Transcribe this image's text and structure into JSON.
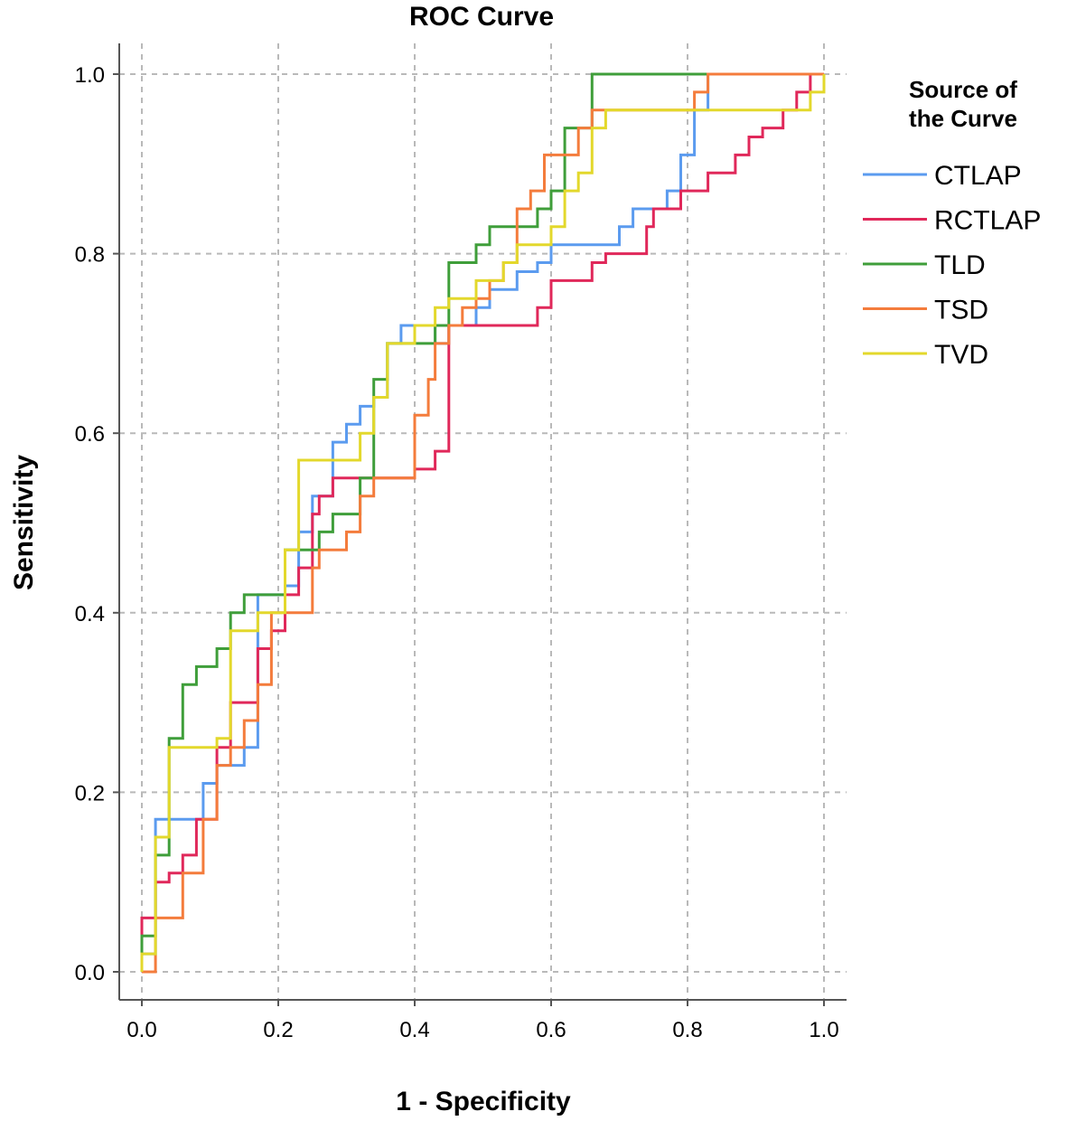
{
  "chart_data": {
    "type": "line",
    "title": "ROC Curve",
    "xlabel": "1 - Specificity",
    "ylabel": "Sensitivity",
    "xlim": [
      0,
      1
    ],
    "ylim": [
      0,
      1
    ],
    "xticks": [
      0.0,
      0.2,
      0.4,
      0.6,
      0.8,
      1.0
    ],
    "yticks": [
      0.0,
      0.2,
      0.4,
      0.6,
      0.8,
      1.0
    ],
    "tick_format": [
      "0.0",
      "0.2",
      "0.4",
      "0.6",
      "0.8",
      "1.0"
    ],
    "grid": true,
    "legend": {
      "title": "Source of the Curve",
      "title_lines": [
        "Source of",
        "the Curve"
      ],
      "position": "right"
    },
    "series": [
      {
        "name": "CTLAP",
        "color": "#5b9bef",
        "points": [
          [
            0,
            0
          ],
          [
            0,
            0.02
          ],
          [
            0.02,
            0.02
          ],
          [
            0.02,
            0.17
          ],
          [
            0.09,
            0.17
          ],
          [
            0.09,
            0.21
          ],
          [
            0.11,
            0.21
          ],
          [
            0.11,
            0.23
          ],
          [
            0.15,
            0.23
          ],
          [
            0.15,
            0.25
          ],
          [
            0.17,
            0.25
          ],
          [
            0.17,
            0.42
          ],
          [
            0.21,
            0.42
          ],
          [
            0.21,
            0.43
          ],
          [
            0.23,
            0.43
          ],
          [
            0.23,
            0.49
          ],
          [
            0.25,
            0.49
          ],
          [
            0.25,
            0.53
          ],
          [
            0.28,
            0.53
          ],
          [
            0.28,
            0.59
          ],
          [
            0.3,
            0.59
          ],
          [
            0.3,
            0.61
          ],
          [
            0.32,
            0.61
          ],
          [
            0.32,
            0.63
          ],
          [
            0.34,
            0.63
          ],
          [
            0.34,
            0.64
          ],
          [
            0.36,
            0.64
          ],
          [
            0.36,
            0.7
          ],
          [
            0.38,
            0.7
          ],
          [
            0.38,
            0.72
          ],
          [
            0.43,
            0.72
          ],
          [
            0.43,
            0.7
          ],
          [
            0.45,
            0.7
          ],
          [
            0.45,
            0.72
          ],
          [
            0.49,
            0.72
          ],
          [
            0.49,
            0.74
          ],
          [
            0.51,
            0.74
          ],
          [
            0.51,
            0.76
          ],
          [
            0.55,
            0.76
          ],
          [
            0.55,
            0.78
          ],
          [
            0.58,
            0.78
          ],
          [
            0.58,
            0.79
          ],
          [
            0.6,
            0.79
          ],
          [
            0.6,
            0.81
          ],
          [
            0.7,
            0.81
          ],
          [
            0.7,
            0.83
          ],
          [
            0.72,
            0.83
          ],
          [
            0.72,
            0.85
          ],
          [
            0.77,
            0.85
          ],
          [
            0.77,
            0.87
          ],
          [
            0.79,
            0.87
          ],
          [
            0.79,
            0.91
          ],
          [
            0.81,
            0.91
          ],
          [
            0.81,
            0.96
          ],
          [
            0.83,
            0.96
          ],
          [
            0.83,
            1.0
          ],
          [
            1.0,
            1.0
          ]
        ]
      },
      {
        "name": "RCTLAP",
        "color": "#e0285a",
        "points": [
          [
            0,
            0
          ],
          [
            0,
            0.06
          ],
          [
            0.02,
            0.06
          ],
          [
            0.02,
            0.1
          ],
          [
            0.04,
            0.1
          ],
          [
            0.04,
            0.11
          ],
          [
            0.06,
            0.11
          ],
          [
            0.06,
            0.13
          ],
          [
            0.08,
            0.13
          ],
          [
            0.08,
            0.17
          ],
          [
            0.11,
            0.17
          ],
          [
            0.11,
            0.25
          ],
          [
            0.13,
            0.25
          ],
          [
            0.13,
            0.3
          ],
          [
            0.17,
            0.3
          ],
          [
            0.17,
            0.36
          ],
          [
            0.19,
            0.36
          ],
          [
            0.19,
            0.38
          ],
          [
            0.21,
            0.38
          ],
          [
            0.21,
            0.42
          ],
          [
            0.23,
            0.42
          ],
          [
            0.23,
            0.45
          ],
          [
            0.25,
            0.45
          ],
          [
            0.25,
            0.51
          ],
          [
            0.26,
            0.51
          ],
          [
            0.26,
            0.53
          ],
          [
            0.28,
            0.53
          ],
          [
            0.28,
            0.55
          ],
          [
            0.4,
            0.55
          ],
          [
            0.4,
            0.56
          ],
          [
            0.43,
            0.56
          ],
          [
            0.43,
            0.58
          ],
          [
            0.45,
            0.58
          ],
          [
            0.45,
            0.72
          ],
          [
            0.58,
            0.72
          ],
          [
            0.58,
            0.74
          ],
          [
            0.6,
            0.74
          ],
          [
            0.6,
            0.77
          ],
          [
            0.66,
            0.77
          ],
          [
            0.66,
            0.79
          ],
          [
            0.68,
            0.79
          ],
          [
            0.68,
            0.8
          ],
          [
            0.74,
            0.8
          ],
          [
            0.74,
            0.83
          ],
          [
            0.75,
            0.83
          ],
          [
            0.75,
            0.85
          ],
          [
            0.79,
            0.85
          ],
          [
            0.79,
            0.87
          ],
          [
            0.83,
            0.87
          ],
          [
            0.83,
            0.89
          ],
          [
            0.87,
            0.89
          ],
          [
            0.87,
            0.91
          ],
          [
            0.89,
            0.91
          ],
          [
            0.89,
            0.93
          ],
          [
            0.91,
            0.93
          ],
          [
            0.91,
            0.94
          ],
          [
            0.94,
            0.94
          ],
          [
            0.94,
            0.96
          ],
          [
            0.96,
            0.96
          ],
          [
            0.96,
            0.98
          ],
          [
            0.98,
            0.98
          ],
          [
            0.98,
            1.0
          ],
          [
            1.0,
            1.0
          ]
        ]
      },
      {
        "name": "TLD",
        "color": "#3f9e3a",
        "points": [
          [
            0,
            0
          ],
          [
            0,
            0.04
          ],
          [
            0.02,
            0.04
          ],
          [
            0.02,
            0.13
          ],
          [
            0.04,
            0.13
          ],
          [
            0.04,
            0.26
          ],
          [
            0.06,
            0.26
          ],
          [
            0.06,
            0.32
          ],
          [
            0.08,
            0.32
          ],
          [
            0.08,
            0.34
          ],
          [
            0.11,
            0.34
          ],
          [
            0.11,
            0.36
          ],
          [
            0.13,
            0.36
          ],
          [
            0.13,
            0.4
          ],
          [
            0.15,
            0.4
          ],
          [
            0.15,
            0.42
          ],
          [
            0.21,
            0.42
          ],
          [
            0.21,
            0.47
          ],
          [
            0.26,
            0.47
          ],
          [
            0.26,
            0.49
          ],
          [
            0.28,
            0.49
          ],
          [
            0.28,
            0.51
          ],
          [
            0.32,
            0.51
          ],
          [
            0.32,
            0.55
          ],
          [
            0.34,
            0.55
          ],
          [
            0.34,
            0.66
          ],
          [
            0.36,
            0.66
          ],
          [
            0.36,
            0.7
          ],
          [
            0.43,
            0.7
          ],
          [
            0.43,
            0.72
          ],
          [
            0.45,
            0.72
          ],
          [
            0.45,
            0.79
          ],
          [
            0.49,
            0.79
          ],
          [
            0.49,
            0.81
          ],
          [
            0.51,
            0.81
          ],
          [
            0.51,
            0.83
          ],
          [
            0.58,
            0.83
          ],
          [
            0.58,
            0.85
          ],
          [
            0.6,
            0.85
          ],
          [
            0.6,
            0.87
          ],
          [
            0.62,
            0.87
          ],
          [
            0.62,
            0.94
          ],
          [
            0.66,
            0.94
          ],
          [
            0.66,
            1.0
          ],
          [
            1.0,
            1.0
          ]
        ]
      },
      {
        "name": "TSD",
        "color": "#f47c3c",
        "points": [
          [
            0,
            0
          ],
          [
            0.02,
            0
          ],
          [
            0.02,
            0.06
          ],
          [
            0.06,
            0.06
          ],
          [
            0.06,
            0.11
          ],
          [
            0.09,
            0.11
          ],
          [
            0.09,
            0.17
          ],
          [
            0.11,
            0.17
          ],
          [
            0.11,
            0.23
          ],
          [
            0.13,
            0.23
          ],
          [
            0.13,
            0.25
          ],
          [
            0.15,
            0.25
          ],
          [
            0.15,
            0.28
          ],
          [
            0.17,
            0.28
          ],
          [
            0.17,
            0.32
          ],
          [
            0.19,
            0.32
          ],
          [
            0.19,
            0.4
          ],
          [
            0.25,
            0.4
          ],
          [
            0.25,
            0.45
          ],
          [
            0.26,
            0.45
          ],
          [
            0.26,
            0.47
          ],
          [
            0.3,
            0.47
          ],
          [
            0.3,
            0.49
          ],
          [
            0.32,
            0.49
          ],
          [
            0.32,
            0.53
          ],
          [
            0.34,
            0.53
          ],
          [
            0.34,
            0.55
          ],
          [
            0.4,
            0.55
          ],
          [
            0.4,
            0.62
          ],
          [
            0.42,
            0.62
          ],
          [
            0.42,
            0.66
          ],
          [
            0.43,
            0.66
          ],
          [
            0.43,
            0.7
          ],
          [
            0.45,
            0.7
          ],
          [
            0.45,
            0.72
          ],
          [
            0.47,
            0.72
          ],
          [
            0.47,
            0.74
          ],
          [
            0.49,
            0.74
          ],
          [
            0.49,
            0.75
          ],
          [
            0.51,
            0.75
          ],
          [
            0.51,
            0.77
          ],
          [
            0.53,
            0.77
          ],
          [
            0.53,
            0.79
          ],
          [
            0.55,
            0.79
          ],
          [
            0.55,
            0.85
          ],
          [
            0.57,
            0.85
          ],
          [
            0.57,
            0.87
          ],
          [
            0.59,
            0.87
          ],
          [
            0.59,
            0.91
          ],
          [
            0.64,
            0.91
          ],
          [
            0.64,
            0.94
          ],
          [
            0.66,
            0.94
          ],
          [
            0.66,
            0.96
          ],
          [
            0.81,
            0.96
          ],
          [
            0.81,
            0.98
          ],
          [
            0.83,
            0.98
          ],
          [
            0.83,
            1.0
          ],
          [
            1.0,
            1.0
          ]
        ]
      },
      {
        "name": "TVD",
        "color": "#e3d82c",
        "points": [
          [
            0,
            0
          ],
          [
            0,
            0.02
          ],
          [
            0.02,
            0.02
          ],
          [
            0.02,
            0.15
          ],
          [
            0.04,
            0.15
          ],
          [
            0.04,
            0.25
          ],
          [
            0.11,
            0.25
          ],
          [
            0.11,
            0.26
          ],
          [
            0.13,
            0.26
          ],
          [
            0.13,
            0.38
          ],
          [
            0.17,
            0.38
          ],
          [
            0.17,
            0.4
          ],
          [
            0.21,
            0.4
          ],
          [
            0.21,
            0.47
          ],
          [
            0.23,
            0.47
          ],
          [
            0.23,
            0.57
          ],
          [
            0.32,
            0.57
          ],
          [
            0.32,
            0.6
          ],
          [
            0.34,
            0.6
          ],
          [
            0.34,
            0.64
          ],
          [
            0.36,
            0.64
          ],
          [
            0.36,
            0.7
          ],
          [
            0.4,
            0.7
          ],
          [
            0.4,
            0.72
          ],
          [
            0.43,
            0.72
          ],
          [
            0.43,
            0.74
          ],
          [
            0.45,
            0.74
          ],
          [
            0.45,
            0.75
          ],
          [
            0.49,
            0.75
          ],
          [
            0.49,
            0.77
          ],
          [
            0.53,
            0.77
          ],
          [
            0.53,
            0.79
          ],
          [
            0.55,
            0.79
          ],
          [
            0.55,
            0.81
          ],
          [
            0.6,
            0.81
          ],
          [
            0.6,
            0.83
          ],
          [
            0.62,
            0.83
          ],
          [
            0.62,
            0.87
          ],
          [
            0.64,
            0.87
          ],
          [
            0.64,
            0.89
          ],
          [
            0.66,
            0.89
          ],
          [
            0.66,
            0.94
          ],
          [
            0.68,
            0.94
          ],
          [
            0.68,
            0.96
          ],
          [
            0.98,
            0.96
          ],
          [
            0.98,
            0.98
          ],
          [
            1.0,
            0.98
          ],
          [
            1.0,
            1.0
          ]
        ]
      }
    ]
  }
}
